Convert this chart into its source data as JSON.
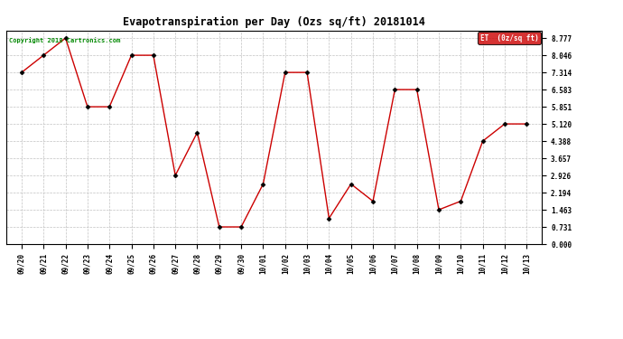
{
  "title": "Evapotranspiration per Day (Ozs sq/ft) 20181014",
  "copyright_text": "Copyright 2018 Cartronics.com",
  "legend_label": "ET  (0z/sq ft)",
  "legend_bg": "#cc0000",
  "line_color": "#cc0000",
  "marker_color": "#000000",
  "background_color": "#ffffff",
  "grid_color": "#bbbbbb",
  "x_labels": [
    "09/20",
    "09/21",
    "09/22",
    "09/23",
    "09/24",
    "09/25",
    "09/26",
    "09/27",
    "09/28",
    "09/29",
    "09/30",
    "10/01",
    "10/02",
    "10/03",
    "10/04",
    "10/05",
    "10/06",
    "10/07",
    "10/08",
    "10/09",
    "10/10",
    "10/11",
    "10/12",
    "10/13"
  ],
  "y_values": [
    7.314,
    8.046,
    8.777,
    5.851,
    5.851,
    8.046,
    8.046,
    2.926,
    4.754,
    0.731,
    0.731,
    2.56,
    7.314,
    7.314,
    1.097,
    2.56,
    1.829,
    6.583,
    6.583,
    1.463,
    1.829,
    4.388,
    5.12,
    5.12
  ],
  "yticks": [
    0.0,
    0.731,
    1.463,
    2.194,
    2.926,
    3.657,
    4.388,
    5.12,
    5.851,
    6.583,
    7.314,
    8.046,
    8.777
  ],
  "ylim": [
    0.0,
    9.1
  ],
  "figsize": [
    6.9,
    3.75
  ],
  "dpi": 100
}
